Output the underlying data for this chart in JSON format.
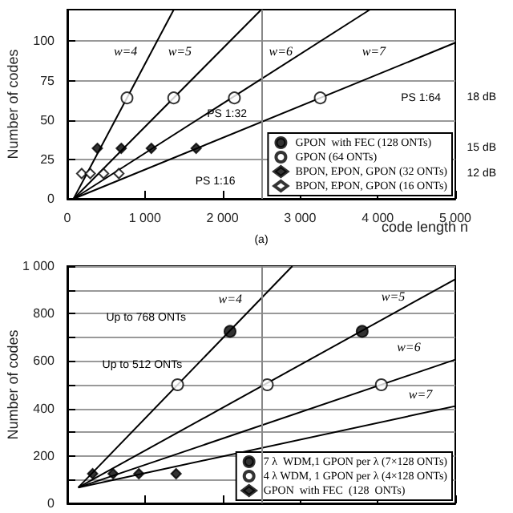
{
  "chart_data": [
    {
      "type": "scatter",
      "xlabel": "code length n",
      "ylabel": "Number of codes",
      "xlim": [
        0,
        5000
      ],
      "ylim": [
        0,
        120
      ],
      "xticks": [
        0,
        {
          "value": 1000,
          "label": "1 000"
        },
        {
          "value": 2000,
          "label": "2 000"
        },
        {
          "value": 3000,
          "label": "3 000"
        },
        {
          "value": 4000,
          "label": "4 000"
        },
        {
          "value": 5000,
          "label": "5 000"
        }
      ],
      "yticks": [
        0,
        25,
        50,
        75,
        100
      ],
      "grid": "y",
      "legend": "bottom right",
      "ref_lines": [
        {
          "axis": "x",
          "value": 2500,
          "color": "#888888"
        }
      ],
      "series": [
        {
          "type": "line",
          "color": "#000000",
          "x": [
            80,
            1372
          ],
          "values": [
            0,
            120
          ]
        },
        {
          "type": "line",
          "color": "#000000",
          "x": [
            80,
            2500
          ],
          "values": [
            0,
            120
          ]
        },
        {
          "type": "line",
          "color": "#000000",
          "x": [
            80,
            3900
          ],
          "values": [
            0,
            120
          ]
        },
        {
          "type": "line",
          "color": "#000000",
          "x": [
            80,
            5000
          ],
          "values": [
            0,
            99
          ]
        },
        {
          "type": "scatter",
          "name": "GPON  with FEC (128 ONTs)",
          "color": "#000000",
          "marker": "circle"
        },
        {
          "type": "scatter",
          "name": "GPON (64 ONTs)",
          "color": "#ffffff",
          "marker": "circle",
          "x": [
            769,
            1371,
            2153,
            3260
          ],
          "values": [
            64,
            64,
            64,
            64
          ]
        },
        {
          "type": "scatter",
          "name": "BPON, EPON, GPON (32 ONTs)",
          "color": "#000000",
          "marker": "diamond",
          "x": [
            387,
            695,
            1082,
            1660
          ],
          "values": [
            32,
            32,
            32,
            32
          ]
        },
        {
          "type": "scatter",
          "name": "BPON, EPON, GPON (16 ONTs)",
          "color": "#ffffff",
          "marker": "diamond",
          "x": [
            185,
            295,
            467,
            664
          ],
          "values": [
            16,
            16,
            16,
            16
          ]
        }
      ],
      "annotations": [
        "w=4",
        "w=5",
        "w=6",
        "w=7",
        "PS 1:64",
        "PS 1:32",
        "PS 1:16",
        "18 dB",
        "15 dB",
        "12 dB",
        "(a)"
      ]
    },
    {
      "type": "scatter",
      "ylabel": "Number of codes",
      "xlim": [
        0,
        5000
      ],
      "ylim": [
        0,
        1000
      ],
      "xticks": [
        0,
        1000,
        2000,
        3000,
        4000,
        5000
      ],
      "yticks": [
        0,
        {
          "value": 100,
          "label": null
        },
        200,
        {
          "value": 300,
          "label": null
        },
        400,
        {
          "value": 500,
          "label": null
        },
        600,
        {
          "value": 700,
          "label": null
        },
        800,
        {
          "value": 900,
          "label": null
        },
        {
          "value": 1000,
          "label": "1 000"
        }
      ],
      "tick_labels": "y",
      "grid": "y",
      "legend": "bottom right",
      "ref_lines": [
        {
          "axis": "x",
          "value": 2500,
          "color": "#888888"
        }
      ],
      "series": [
        {
          "type": "line",
          "color": "#000000",
          "x": [
            141,
            2900
          ],
          "values": [
            67,
            1000
          ]
        },
        {
          "type": "line",
          "color": "#000000",
          "x": [
            141,
            5000
          ],
          "values": [
            67,
            945
          ]
        },
        {
          "type": "line",
          "color": "#000000",
          "x": [
            141,
            5000
          ],
          "values": [
            67,
            606
          ]
        },
        {
          "type": "line",
          "color": "#000000",
          "x": [
            141,
            5000
          ],
          "values": [
            67,
            410
          ]
        },
        {
          "type": "scatter",
          "name": "7 λ  WDM,1 GPON per λ (7×128 ONTs)",
          "color": "#000000",
          "marker": "circle",
          "x": [
            2097,
            3800
          ],
          "values": [
            725,
            725
          ]
        },
        {
          "type": "scatter",
          "name": "4 λ WDM, 1 GPON per λ (4×128 ONTs)",
          "color": "#ffffff",
          "marker": "circle",
          "x": [
            1421,
            2577,
            4047
          ],
          "values": [
            500,
            500,
            500
          ]
        },
        {
          "type": "scatter",
          "name": "GPON  with FEC  (128  ONTs)",
          "color": "#000000",
          "marker": "diamond",
          "x": [
            326,
            590,
            922,
            1402
          ],
          "values": [
            125,
            125,
            125,
            125
          ]
        }
      ],
      "annotations": [
        "w=4",
        "w=5",
        "w=6",
        "w=7",
        "Up to 768 ONTs",
        "Up to 512 ONTs"
      ]
    }
  ]
}
